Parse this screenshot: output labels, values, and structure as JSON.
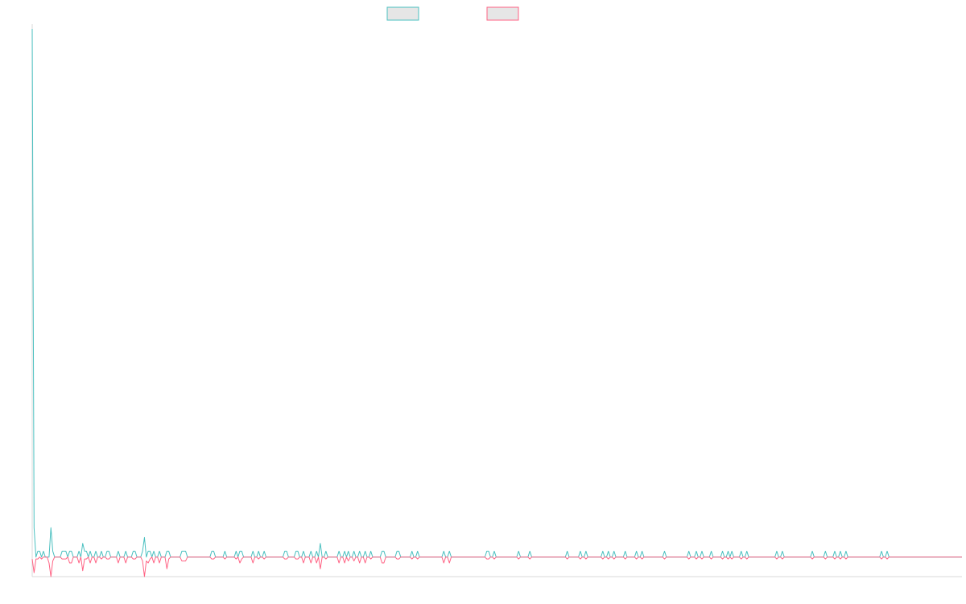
{
  "chart_data": {
    "type": "line",
    "title": "",
    "xlabel": "",
    "ylabel": "",
    "legend": "top-center",
    "grid": false,
    "ylim": [
      -1,
      27
    ],
    "series": [
      {
        "color": "#4bc0c0",
        "fill": "#e6e6e6",
        "values": [
          27,
          1.5,
          0,
          0.3,
          0.3,
          0,
          0.3,
          0,
          0,
          0,
          1.5,
          0.3,
          0,
          0,
          0,
          0,
          0.3,
          0.3,
          0.3,
          0,
          0.3,
          0.3,
          0,
          0,
          0,
          0.3,
          0,
          0.7,
          0.3,
          0.3,
          0,
          0.3,
          0,
          0,
          0.3,
          0,
          0,
          0.3,
          0,
          0,
          0.3,
          0.3,
          0,
          0,
          0,
          0,
          0.3,
          0,
          0,
          0,
          0.3,
          0,
          0,
          0,
          0.3,
          0.3,
          0,
          0,
          0,
          0.3,
          1,
          0,
          0.3,
          0.3,
          0,
          0.3,
          0,
          0,
          0.3,
          0,
          0,
          0,
          0.3,
          0.3,
          0,
          0,
          0,
          0,
          0,
          0,
          0.3,
          0.3,
          0.3,
          0,
          0,
          0,
          0,
          0,
          0,
          0,
          0,
          0,
          0,
          0,
          0,
          0,
          0.3,
          0.3,
          0,
          0,
          0,
          0,
          0,
          0.3,
          0,
          0,
          0,
          0,
          0,
          0.3,
          0,
          0.3,
          0.3,
          0,
          0,
          0,
          0,
          0,
          0.3,
          0,
          0,
          0.3,
          0,
          0,
          0.3,
          0,
          0,
          0,
          0,
          0,
          0,
          0,
          0,
          0,
          0,
          0.3,
          0.3,
          0,
          0,
          0,
          0,
          0.3,
          0.3,
          0,
          0,
          0.3,
          0,
          0,
          0,
          0.3,
          0,
          0,
          0.3,
          0,
          0.7,
          0,
          0,
          0.3,
          0,
          0,
          0,
          0,
          0,
          0,
          0.3,
          0,
          0,
          0.3,
          0,
          0.3,
          0,
          0,
          0.3,
          0,
          0,
          0.3,
          0,
          0,
          0.3,
          0,
          0,
          0.3,
          0,
          0,
          0,
          0,
          0,
          0.3,
          0.3,
          0,
          0,
          0,
          0,
          0,
          0,
          0.3,
          0.3,
          0,
          0,
          0,
          0,
          0,
          0,
          0.3,
          0,
          0,
          0.3,
          0,
          0,
          0,
          0,
          0,
          0,
          0,
          0,
          0,
          0,
          0,
          0,
          0,
          0.3,
          0,
          0,
          0.3,
          0,
          0,
          0,
          0,
          0,
          0,
          0,
          0,
          0,
          0,
          0,
          0,
          0,
          0,
          0,
          0,
          0,
          0,
          0,
          0.3,
          0.3,
          0,
          0,
          0.3,
          0,
          0,
          0,
          0,
          0,
          0,
          0,
          0,
          0,
          0,
          0,
          0,
          0.3,
          0,
          0,
          0,
          0,
          0,
          0.3,
          0,
          0,
          0,
          0,
          0,
          0,
          0,
          0,
          0,
          0,
          0,
          0,
          0,
          0,
          0,
          0,
          0,
          0,
          0,
          0.3,
          0,
          0,
          0,
          0,
          0,
          0,
          0.3,
          0,
          0,
          0.3,
          0,
          0,
          0,
          0,
          0,
          0,
          0,
          0,
          0.3,
          0,
          0,
          0.3,
          0,
          0,
          0.3,
          0,
          0,
          0,
          0,
          0,
          0.3,
          0,
          0,
          0,
          0,
          0,
          0.3,
          0,
          0,
          0.3,
          0,
          0,
          0,
          0,
          0,
          0,
          0,
          0,
          0,
          0,
          0,
          0.3,
          0,
          0,
          0,
          0,
          0,
          0,
          0,
          0,
          0,
          0,
          0,
          0,
          0.3,
          0,
          0,
          0,
          0.3,
          0,
          0,
          0.3,
          0,
          0,
          0,
          0,
          0.3,
          0,
          0,
          0,
          0,
          0,
          0.3,
          0,
          0,
          0.3,
          0,
          0.3,
          0,
          0,
          0,
          0,
          0.3,
          0,
          0,
          0.3,
          0,
          0,
          0,
          0,
          0,
          0,
          0,
          0,
          0,
          0,
          0,
          0,
          0,
          0,
          0,
          0.3,
          0,
          0,
          0.3,
          0,
          0,
          0,
          0,
          0,
          0,
          0,
          0,
          0,
          0,
          0,
          0,
          0,
          0,
          0,
          0.3,
          0,
          0,
          0,
          0,
          0,
          0,
          0.3,
          0,
          0,
          0,
          0,
          0.3,
          0,
          0,
          0.3,
          0,
          0,
          0.3,
          0,
          0,
          0,
          0,
          0,
          0,
          0,
          0,
          0,
          0,
          0,
          0,
          0,
          0,
          0,
          0,
          0,
          0,
          0.3,
          0,
          0,
          0.3,
          0,
          0,
          0,
          0,
          0,
          0,
          0,
          0,
          0,
          0,
          0,
          0,
          0,
          0,
          0,
          0,
          0,
          0,
          0,
          0,
          0,
          0,
          0,
          0,
          0,
          0,
          0,
          0,
          0,
          0,
          0,
          0,
          0,
          0,
          0,
          0,
          0,
          0,
          0,
          0
        ]
      },
      {
        "color": "#ff6384",
        "fill": "#e6e6e6",
        "values": [
          -0.1,
          -0.8,
          -0.1,
          -0.1,
          0,
          -0.1,
          0,
          0,
          0,
          -0.3,
          -1,
          -0.2,
          0,
          0,
          0,
          0,
          -0.1,
          -0.1,
          -0.1,
          0,
          -0.3,
          -0.3,
          0,
          0,
          0,
          -0.3,
          0,
          -0.7,
          -0.1,
          -0.1,
          0,
          -0.3,
          0,
          0,
          -0.3,
          0,
          0,
          -0.1,
          0,
          0,
          -0.1,
          -0.1,
          0,
          0,
          0,
          0,
          -0.3,
          0,
          0,
          0,
          -0.3,
          0,
          0,
          0,
          -0.1,
          -0.1,
          0,
          0,
          0,
          -0.2,
          -1,
          -0.2,
          -0.3,
          -0.1,
          0,
          -0.3,
          0,
          0,
          -0.3,
          0,
          0,
          0,
          -0.6,
          -0.1,
          0,
          0,
          0,
          0,
          0,
          0,
          -0.2,
          -0.2,
          -0.2,
          0,
          0,
          0,
          0,
          0,
          0,
          0,
          0,
          0,
          0,
          0,
          0,
          0,
          -0.1,
          -0.1,
          0,
          0,
          0,
          0,
          0,
          -0.1,
          0,
          0,
          0,
          0,
          0,
          -0.1,
          0,
          -0.3,
          -0.1,
          0,
          0,
          0,
          0,
          0,
          -0.3,
          0,
          0,
          -0.1,
          0,
          0,
          -0.1,
          0,
          0,
          0,
          0,
          0,
          0,
          0,
          0,
          0,
          0,
          -0.1,
          -0.1,
          0,
          0,
          0,
          0,
          -0.1,
          -0.1,
          0,
          0,
          -0.3,
          0,
          0,
          0,
          -0.3,
          0,
          0,
          -0.3,
          0,
          -0.6,
          0,
          0,
          -0.1,
          0,
          0,
          0,
          0,
          0,
          0,
          -0.3,
          0,
          0,
          -0.3,
          0,
          -0.2,
          0,
          0,
          -0.2,
          0,
          0,
          -0.3,
          0,
          0,
          -0.3,
          0,
          0,
          -0.1,
          0,
          0,
          0,
          0,
          0,
          -0.3,
          -0.3,
          0,
          0,
          0,
          0,
          0,
          0,
          -0.1,
          -0.1,
          0,
          0,
          0,
          0,
          0,
          0,
          -0.1,
          0,
          0,
          -0.1,
          0,
          0,
          0,
          0,
          0,
          0,
          0,
          0,
          0,
          0,
          0,
          0,
          0,
          -0.3,
          0,
          0,
          -0.3,
          0,
          0,
          0,
          0,
          0,
          0,
          0,
          0,
          0,
          0,
          0,
          0,
          0,
          0,
          0,
          0,
          0,
          0,
          0,
          -0.1,
          -0.1,
          0,
          0,
          -0.1,
          0,
          0,
          0,
          0,
          0,
          0,
          0,
          0,
          0,
          0,
          0,
          0,
          -0.1,
          0,
          0,
          0,
          0,
          0,
          -0.1,
          0,
          0,
          0,
          0,
          0,
          0,
          0,
          0,
          0,
          0,
          0,
          0,
          0,
          0,
          0,
          0,
          0,
          0,
          0,
          -0.1,
          0,
          0,
          0,
          0,
          0,
          0,
          -0.1,
          0,
          0,
          -0.1,
          0,
          0,
          0,
          0,
          0,
          0,
          0,
          0,
          -0.1,
          0,
          0,
          -0.1,
          0,
          0,
          -0.1,
          0,
          0,
          0,
          0,
          0,
          -0.1,
          0,
          0,
          0,
          0,
          0,
          -0.1,
          0,
          0,
          -0.1,
          0,
          0,
          0,
          0,
          0,
          0,
          0,
          0,
          0,
          0,
          0,
          -0.1,
          0,
          0,
          0,
          0,
          0,
          0,
          0,
          0,
          0,
          0,
          0,
          0,
          -0.1,
          0,
          0,
          0,
          -0.1,
          0,
          0,
          -0.1,
          0,
          0,
          0,
          0,
          -0.1,
          0,
          0,
          0,
          0,
          0,
          -0.1,
          0,
          0,
          -0.1,
          0,
          -0.1,
          0,
          0,
          0,
          0,
          -0.1,
          0,
          0,
          -0.1,
          0,
          0,
          0,
          0,
          0,
          0,
          0,
          0,
          0,
          0,
          0,
          0,
          0,
          0,
          0,
          -0.1,
          0,
          0,
          -0.1,
          0,
          0,
          0,
          0,
          0,
          0,
          0,
          0,
          0,
          0,
          0,
          0,
          0,
          0,
          0,
          -0.1,
          0,
          0,
          0,
          0,
          0,
          0,
          -0.1,
          0,
          0,
          0,
          0,
          -0.1,
          0,
          0,
          -0.1,
          0,
          0,
          -0.1,
          0,
          0,
          0,
          0,
          0,
          0,
          0,
          0,
          0,
          0,
          0,
          0,
          0,
          0,
          0,
          0,
          0,
          0,
          -0.1,
          0,
          0,
          -0.1,
          0,
          0,
          0,
          0,
          0,
          0,
          0,
          0,
          0,
          0,
          0,
          0,
          0,
          0,
          0,
          0,
          0,
          0,
          0,
          0,
          0,
          0,
          0,
          0,
          0,
          0,
          0,
          0,
          0,
          0,
          0,
          0,
          0,
          0,
          0,
          0,
          0,
          0,
          0,
          0
        ]
      }
    ]
  }
}
